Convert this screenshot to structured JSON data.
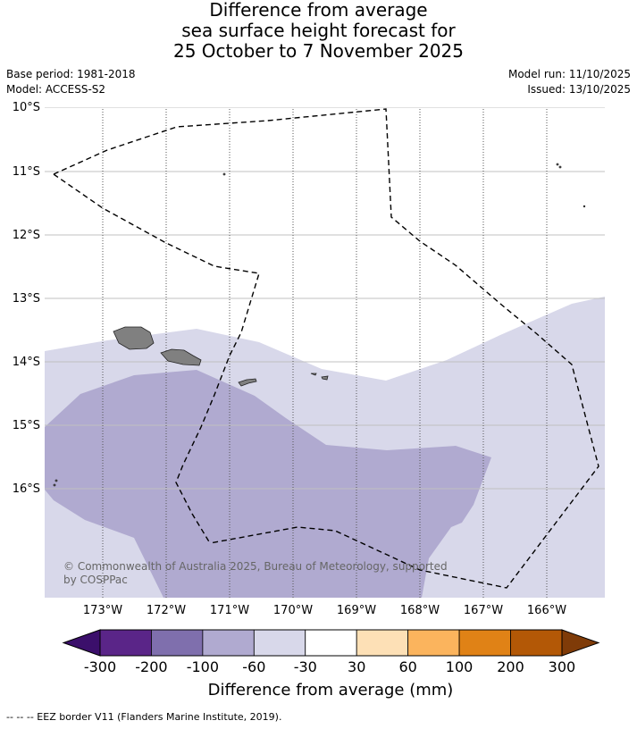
{
  "title": {
    "line1": "Difference from average",
    "line2": "sea surface height forecast for",
    "line3": "25 October to 7 November 2025"
  },
  "meta": {
    "base_period": "Base period: 1981-2018",
    "model": "Model: ACCESS-S2",
    "model_run": "Model run: 11/10/2025",
    "issued": "Issued: 13/10/2025"
  },
  "map": {
    "lat_labels": [
      "10°S",
      "11°S",
      "12°S",
      "13°S",
      "14°S",
      "15°S",
      "16°S"
    ],
    "lon_labels": [
      "173°W",
      "172°W",
      "171°W",
      "170°W",
      "169°W",
      "168°W",
      "167°W",
      "166°W"
    ],
    "copyright_line1": "© Commonwealth of Australia 2025, Bureau of Meteorology, supported",
    "copyright_line2": "by COSPPac",
    "colors": {
      "land": "#808080",
      "band_minus60_minus30": "#d8d8ea",
      "band_minus100_minus60": "#b0aad0"
    }
  },
  "colorbar": {
    "ticks": [
      "-300",
      "-200",
      "-100",
      "-60",
      "-30",
      "30",
      "60",
      "100",
      "200",
      "300"
    ],
    "colors": [
      "#5a2588",
      "#7f6fad",
      "#b0aad0",
      "#d8d8ea",
      "#ffffff",
      "#fde0b6",
      "#fbb45d",
      "#e08216",
      "#b35806"
    ],
    "low_extend_color": "#3b0f6b",
    "high_extend_color": "#7f3b08",
    "title": "Difference from average (mm)"
  },
  "footer": "--  --  -- EEZ border V11 (Flanders Marine Institute, 2019)."
}
